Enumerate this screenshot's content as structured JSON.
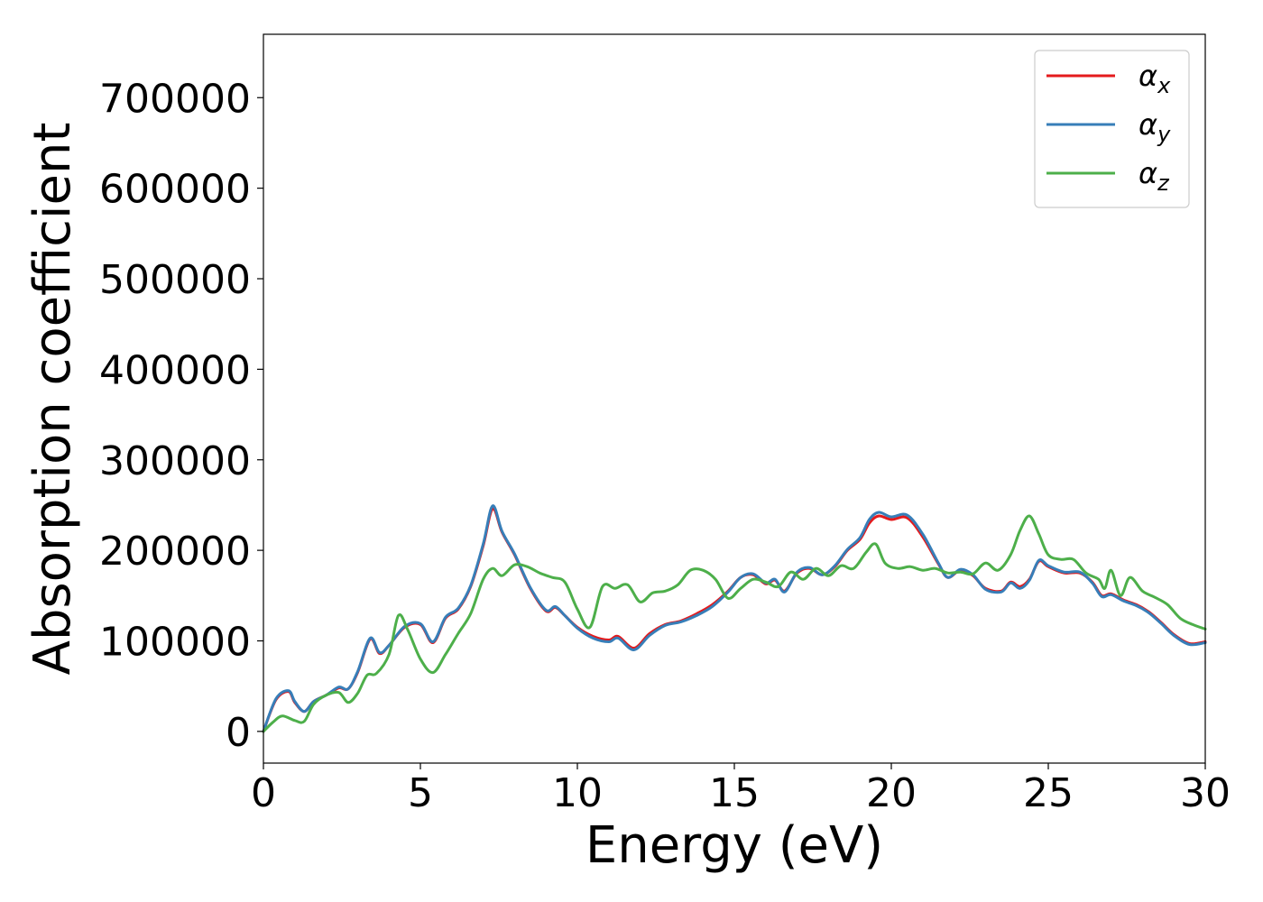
{
  "chart_data": {
    "type": "line",
    "xlabel": "Energy (eV)",
    "ylabel": "Absorption coefficient",
    "xlim": [
      0,
      30
    ],
    "ylim": [
      -35000,
      770000
    ],
    "xticks": [
      0,
      5,
      10,
      15,
      20,
      25,
      30
    ],
    "xtick_labels": [
      "0",
      "5",
      "10",
      "15",
      "20",
      "25",
      "30"
    ],
    "yticks": [
      0,
      100000,
      200000,
      300000,
      400000,
      500000,
      600000,
      700000
    ],
    "ytick_labels": [
      "0",
      "100000",
      "200000",
      "300000",
      "400000",
      "500000",
      "600000",
      "700000"
    ],
    "grid": false,
    "legend_position": "top-right",
    "series": [
      {
        "name": "α_x",
        "legend_base": "α",
        "legend_sub": "x",
        "color": "#e41a1c",
        "x": [
          0,
          0.4,
          0.8,
          1.0,
          1.3,
          1.6,
          2.0,
          2.4,
          2.7,
          3.0,
          3.4,
          3.7,
          4.0,
          4.5,
          5.0,
          5.4,
          5.8,
          6.2,
          6.6,
          7.0,
          7.3,
          7.6,
          8.0,
          8.5,
          9.0,
          9.3,
          9.6,
          10.0,
          10.5,
          11.0,
          11.3,
          11.8,
          12.3,
          12.8,
          13.3,
          13.8,
          14.3,
          14.8,
          15.2,
          15.6,
          16.0,
          16.3,
          16.6,
          17.0,
          17.4,
          17.8,
          18.2,
          18.6,
          19.0,
          19.3,
          19.6,
          20.0,
          20.5,
          21.0,
          21.5,
          21.8,
          22.2,
          22.6,
          23.0,
          23.5,
          23.8,
          24.1,
          24.4,
          24.7,
          25.0,
          25.5,
          26.0,
          26.4,
          26.7,
          27.0,
          27.4,
          27.8,
          28.2,
          28.6,
          29.0,
          29.5,
          30.0
        ],
        "values": [
          0,
          35000,
          44000,
          32000,
          22000,
          33000,
          40000,
          48000,
          47000,
          65000,
          102000,
          86000,
          95000,
          115000,
          118000,
          98000,
          125000,
          135000,
          160000,
          205000,
          246000,
          220000,
          195000,
          158000,
          133000,
          137000,
          128000,
          115000,
          105000,
          101000,
          105000,
          92000,
          108000,
          118000,
          122000,
          130000,
          140000,
          155000,
          170000,
          173000,
          163000,
          167000,
          155000,
          175000,
          180000,
          173000,
          182000,
          200000,
          212000,
          230000,
          238000,
          234000,
          236000,
          215000,
          185000,
          170000,
          178000,
          172000,
          158000,
          155000,
          165000,
          160000,
          168000,
          188000,
          182000,
          175000,
          175000,
          165000,
          150000,
          152000,
          145000,
          140000,
          132000,
          120000,
          107000,
          97000,
          99000
        ]
      },
      {
        "name": "α_y",
        "legend_base": "α",
        "legend_sub": "y",
        "color": "#377eb8",
        "x": [
          0,
          0.4,
          0.8,
          1.0,
          1.3,
          1.6,
          2.0,
          2.4,
          2.7,
          3.0,
          3.4,
          3.7,
          4.0,
          4.5,
          5.0,
          5.4,
          5.8,
          6.2,
          6.6,
          7.0,
          7.3,
          7.6,
          8.0,
          8.5,
          9.0,
          9.3,
          9.6,
          10.0,
          10.5,
          11.0,
          11.3,
          11.8,
          12.3,
          12.8,
          13.3,
          13.8,
          14.3,
          14.8,
          15.2,
          15.6,
          16.0,
          16.3,
          16.6,
          17.0,
          17.4,
          17.8,
          18.2,
          18.6,
          19.0,
          19.3,
          19.6,
          20.0,
          20.5,
          21.0,
          21.5,
          21.8,
          22.2,
          22.6,
          23.0,
          23.5,
          23.8,
          24.1,
          24.4,
          24.7,
          25.0,
          25.5,
          26.0,
          26.4,
          26.7,
          27.0,
          27.4,
          27.8,
          28.2,
          28.6,
          29.0,
          29.5,
          30.0
        ],
        "values": [
          0,
          36000,
          45000,
          33000,
          22000,
          33000,
          40000,
          49000,
          47000,
          66000,
          103000,
          87000,
          95000,
          116000,
          119000,
          99000,
          126000,
          136000,
          161000,
          207000,
          249000,
          221000,
          196000,
          159000,
          134000,
          138000,
          128000,
          114000,
          103000,
          99000,
          103000,
          90000,
          106000,
          117000,
          121000,
          128000,
          138000,
          154000,
          170000,
          174000,
          164000,
          168000,
          154000,
          176000,
          181000,
          173000,
          183000,
          201000,
          214000,
          234000,
          242000,
          237000,
          239000,
          218000,
          186000,
          170000,
          179000,
          173000,
          157000,
          154000,
          164000,
          158000,
          167000,
          189000,
          183000,
          176000,
          176000,
          164000,
          149000,
          151000,
          144000,
          139000,
          131000,
          119000,
          106000,
          96000,
          98000
        ]
      },
      {
        "name": "α_z",
        "legend_base": "α",
        "legend_sub": "z",
        "color": "#4daf4a",
        "x": [
          0,
          0.3,
          0.6,
          1.0,
          1.3,
          1.6,
          2.0,
          2.4,
          2.7,
          3.0,
          3.3,
          3.6,
          4.0,
          4.3,
          4.6,
          5.0,
          5.4,
          5.8,
          6.2,
          6.6,
          7.0,
          7.3,
          7.6,
          8.0,
          8.4,
          8.8,
          9.2,
          9.6,
          10.0,
          10.4,
          10.8,
          11.2,
          11.6,
          12.0,
          12.4,
          12.8,
          13.2,
          13.6,
          14.0,
          14.4,
          14.8,
          15.2,
          15.6,
          16.0,
          16.4,
          16.8,
          17.2,
          17.6,
          18.0,
          18.4,
          18.8,
          19.2,
          19.5,
          19.8,
          20.2,
          20.6,
          21.0,
          21.4,
          21.8,
          22.2,
          22.6,
          23.0,
          23.4,
          23.8,
          24.1,
          24.4,
          24.7,
          25.0,
          25.4,
          25.8,
          26.2,
          26.6,
          26.8,
          27.0,
          27.3,
          27.6,
          28.0,
          28.4,
          28.8,
          29.2,
          29.6,
          30.0
        ],
        "values": [
          0,
          10000,
          17000,
          12000,
          11000,
          30000,
          40000,
          43000,
          32000,
          42000,
          62000,
          64000,
          85000,
          128000,
          112000,
          80000,
          65000,
          85000,
          108000,
          130000,
          168000,
          180000,
          172000,
          184000,
          182000,
          175000,
          170000,
          165000,
          135000,
          115000,
          160000,
          158000,
          162000,
          143000,
          153000,
          155000,
          162000,
          178000,
          178000,
          168000,
          147000,
          158000,
          168000,
          165000,
          160000,
          176000,
          168000,
          180000,
          172000,
          183000,
          180000,
          198000,
          207000,
          186000,
          180000,
          182000,
          178000,
          180000,
          175000,
          176000,
          174000,
          186000,
          178000,
          195000,
          222000,
          238000,
          218000,
          195000,
          190000,
          190000,
          175000,
          168000,
          158000,
          178000,
          150000,
          170000,
          155000,
          148000,
          140000,
          125000,
          118000,
          113000
        ]
      }
    ]
  }
}
